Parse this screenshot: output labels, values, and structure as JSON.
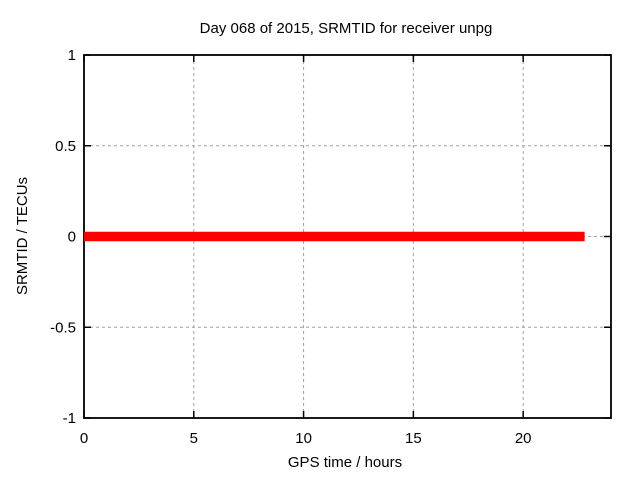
{
  "chart_data": {
    "type": "line",
    "title": "Day 068 of 2015, SRMTID for receiver unpg",
    "xlabel": "GPS time / hours",
    "ylabel": "SRMTID / TECUs",
    "xlim": [
      0,
      24
    ],
    "ylim": [
      -1,
      1
    ],
    "xticks": [
      {
        "v": 0,
        "label": "0"
      },
      {
        "v": 5,
        "label": "5"
      },
      {
        "v": 10,
        "label": "10"
      },
      {
        "v": 15,
        "label": "15"
      },
      {
        "v": 20,
        "label": "20"
      }
    ],
    "yticks": [
      {
        "v": -1,
        "label": "-1"
      },
      {
        "v": -0.5,
        "label": "-0.5"
      },
      {
        "v": 0,
        "label": "0"
      },
      {
        "v": 0.5,
        "label": "0.5"
      },
      {
        "v": 1,
        "label": "1"
      }
    ],
    "grid": true,
    "grid_color": "#a0a0a0",
    "border_color": "#000000",
    "legend": "none",
    "series": [
      {
        "name": "SRMTID",
        "color": "#ff0000",
        "linewidth": 9.5,
        "x": [
          0,
          22.8
        ],
        "y": [
          0,
          0
        ]
      }
    ]
  }
}
